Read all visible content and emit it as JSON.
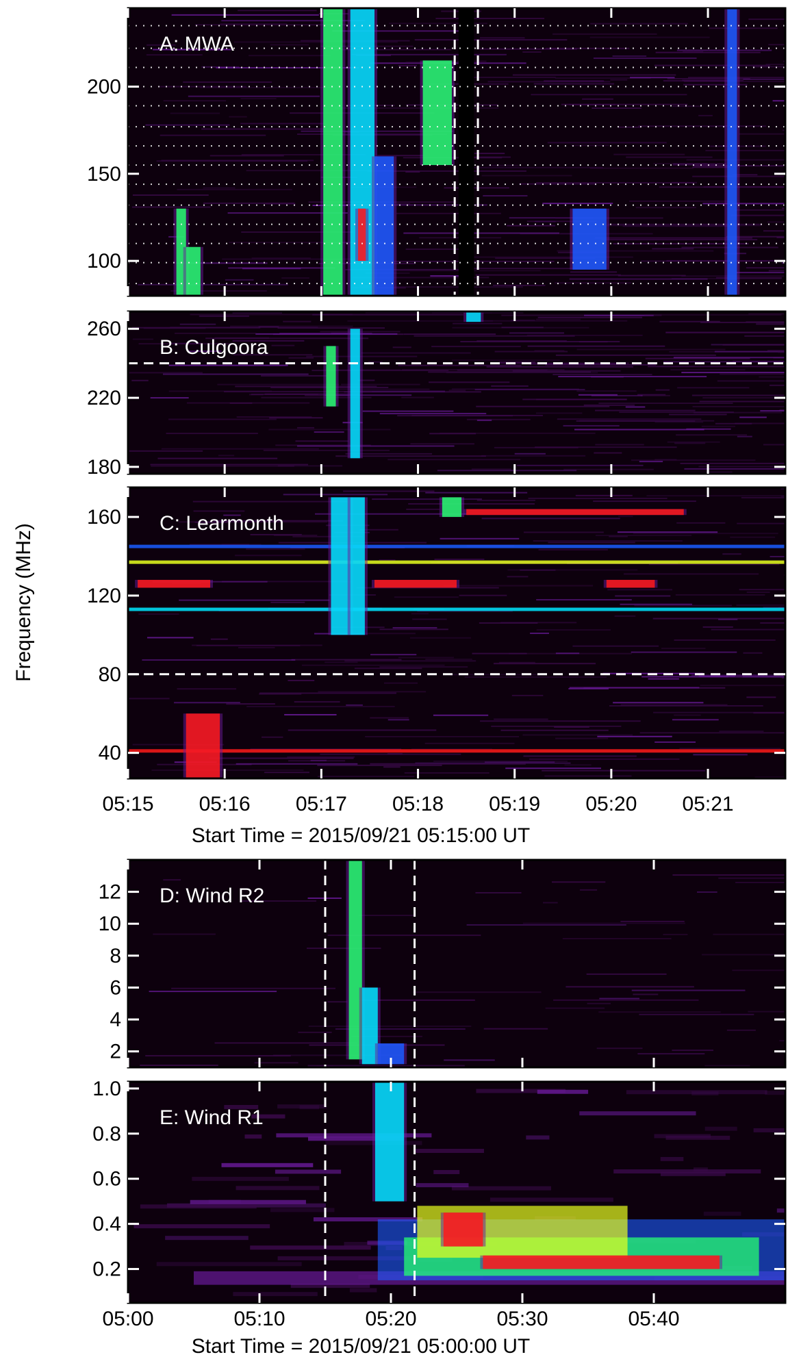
{
  "colors": {
    "background": "#0d000d",
    "faint": "#3a0a4a",
    "purple": "#6a1a9a",
    "blue": "#1a5cff",
    "cyan": "#00e5ff",
    "green": "#26ff70",
    "yellow": "#e8ff20",
    "red": "#ff1a1a",
    "guide": "#ffffff"
  },
  "figure": {
    "ylabel": "Frequency (MHz)"
  },
  "chart_data": [
    {
      "type": "heatmap",
      "id": "A",
      "label": "A: MWA",
      "xlim": [
        0,
        6.8
      ],
      "ylim": [
        80,
        245
      ],
      "yticks": [
        100,
        150,
        200
      ],
      "ytick_labels": [
        "100",
        "150",
        "200"
      ],
      "xticks": [
        0,
        1,
        2,
        3,
        4,
        5,
        6
      ],
      "grid": "dotted horizontal",
      "channel_lines": [
        87,
        99,
        110,
        121,
        132,
        144,
        155,
        166,
        177,
        189,
        200,
        211,
        222,
        235
      ],
      "vlines": [
        3.38,
        3.62
      ],
      "vline_style": "dashed",
      "gap": [
        3.42,
        3.58
      ],
      "features": [
        {
          "t0": 0.5,
          "t1": 0.6,
          "f0": 80,
          "f1": 130,
          "level": "green"
        },
        {
          "t0": 0.6,
          "t1": 0.75,
          "f0": 80,
          "f1": 108,
          "level": "green"
        },
        {
          "t0": 2.02,
          "t1": 2.22,
          "f0": 80,
          "f1": 245,
          "level": "green"
        },
        {
          "t0": 2.3,
          "t1": 2.55,
          "f0": 80,
          "f1": 245,
          "level": "cyan"
        },
        {
          "t0": 2.38,
          "t1": 2.46,
          "f0": 100,
          "f1": 130,
          "level": "red"
        },
        {
          "t0": 2.55,
          "t1": 2.75,
          "f0": 80,
          "f1": 160,
          "level": "blue"
        },
        {
          "t0": 3.05,
          "t1": 3.35,
          "f0": 155,
          "f1": 215,
          "level": "green"
        },
        {
          "t0": 4.6,
          "t1": 4.95,
          "f0": 95,
          "f1": 130,
          "level": "blue"
        },
        {
          "t0": 6.2,
          "t1": 6.3,
          "f0": 80,
          "f1": 245,
          "level": "blue"
        }
      ]
    },
    {
      "type": "heatmap",
      "id": "B",
      "label": "B: Culgoora",
      "xlim": [
        0,
        6.8
      ],
      "ylim": [
        176,
        270
      ],
      "yticks": [
        180,
        220,
        260
      ],
      "ytick_labels": [
        "180",
        "220",
        "260"
      ],
      "xticks": [
        0,
        1,
        2,
        3,
        4,
        5,
        6
      ],
      "hlines": [
        240
      ],
      "hline_style": "dashed",
      "features": [
        {
          "t0": 2.05,
          "t1": 2.15,
          "f0": 215,
          "f1": 250,
          "level": "green"
        },
        {
          "t0": 2.3,
          "t1": 2.4,
          "f0": 185,
          "f1": 260,
          "level": "cyan"
        },
        {
          "t0": 3.5,
          "t1": 3.65,
          "f0": 264,
          "f1": 270,
          "level": "cyan"
        }
      ]
    },
    {
      "type": "heatmap",
      "id": "C",
      "label": "C: Learmonth",
      "xlim": [
        0,
        6.8
      ],
      "xlim_labels": [
        "05:15",
        "05:16",
        "05:17",
        "05:18",
        "05:19",
        "05:20",
        "05:21"
      ],
      "ylim": [
        27,
        175
      ],
      "yticks": [
        40,
        80,
        120,
        160
      ],
      "ytick_labels": [
        "40",
        "80",
        "120",
        "160"
      ],
      "xticks": [
        0,
        1,
        2,
        3,
        4,
        5,
        6
      ],
      "xlabel": "Start Time = 2015/09/21 05:15:00 UT",
      "hlines": [
        80
      ],
      "hline_style": "dashed",
      "rfi_lines": [
        {
          "f": 137,
          "level": "yellow"
        },
        {
          "f": 113,
          "level": "cyan"
        },
        {
          "f": 145,
          "level": "blue"
        },
        {
          "f": 41,
          "level": "red"
        }
      ],
      "features": [
        {
          "t0": 0.6,
          "t1": 0.95,
          "f0": 27,
          "f1": 60,
          "level": "red"
        },
        {
          "t0": 2.1,
          "t1": 2.3,
          "f0": 100,
          "f1": 170,
          "level": "cyan"
        },
        {
          "t0": 2.3,
          "t1": 2.45,
          "f0": 100,
          "f1": 170,
          "level": "cyan"
        },
        {
          "t0": 3.25,
          "t1": 3.45,
          "f0": 160,
          "f1": 170,
          "level": "green"
        },
        {
          "t0": 3.5,
          "t1": 5.75,
          "f0": 161,
          "f1": 164,
          "level": "red"
        },
        {
          "t0": 0.1,
          "t1": 0.85,
          "f0": 124,
          "f1": 128,
          "level": "red"
        },
        {
          "t0": 2.55,
          "t1": 3.4,
          "f0": 124,
          "f1": 128,
          "level": "red"
        },
        {
          "t0": 4.95,
          "t1": 5.45,
          "f0": 124,
          "f1": 128,
          "level": "red"
        }
      ]
    },
    {
      "type": "heatmap",
      "id": "D",
      "label": "D: Wind R2",
      "xlim": [
        0,
        50
      ],
      "ylim": [
        1,
        14
      ],
      "yticks": [
        2,
        4,
        6,
        8,
        10,
        12
      ],
      "ytick_labels": [
        "2",
        "4",
        "6",
        "8",
        "10",
        "12"
      ],
      "xticks": [
        0,
        10,
        20,
        30,
        40
      ],
      "vlines": [
        15,
        21.8
      ],
      "vline_style": "dashed",
      "features": [
        {
          "t0": 16.8,
          "t1": 17.8,
          "f0": 1.5,
          "f1": 14,
          "level": "green"
        },
        {
          "t0": 17.8,
          "t1": 19,
          "f0": 1.2,
          "f1": 6,
          "level": "cyan"
        },
        {
          "t0": 19,
          "t1": 21,
          "f0": 1.2,
          "f1": 2.5,
          "level": "blue"
        }
      ]
    },
    {
      "type": "heatmap",
      "id": "E",
      "label": "E: Wind R1",
      "xlim": [
        0,
        50
      ],
      "xlim_labels": [
        "05:00",
        "05:10",
        "05:20",
        "05:30",
        "05:40"
      ],
      "ylim": [
        0.05,
        1.03
      ],
      "yticks": [
        0.2,
        0.4,
        0.6,
        0.8,
        1.0
      ],
      "ytick_labels": [
        "0.2",
        "0.4",
        "0.6",
        "0.8",
        "1.0"
      ],
      "xticks": [
        0,
        10,
        20,
        30,
        40
      ],
      "xlabel": "Start Time = 2015/09/21 05:00:00 UT",
      "vlines": [
        15,
        21.8
      ],
      "vline_style": "dashed",
      "features": [
        {
          "t0": 18.8,
          "t1": 21,
          "f0": 0.5,
          "f1": 1.03,
          "level": "cyan"
        },
        {
          "t0": 24,
          "t1": 27,
          "f0": 0.3,
          "f1": 0.45,
          "level": "red"
        },
        {
          "t0": 27,
          "t1": 45,
          "f0": 0.2,
          "f1": 0.26,
          "level": "red"
        }
      ]
    }
  ]
}
